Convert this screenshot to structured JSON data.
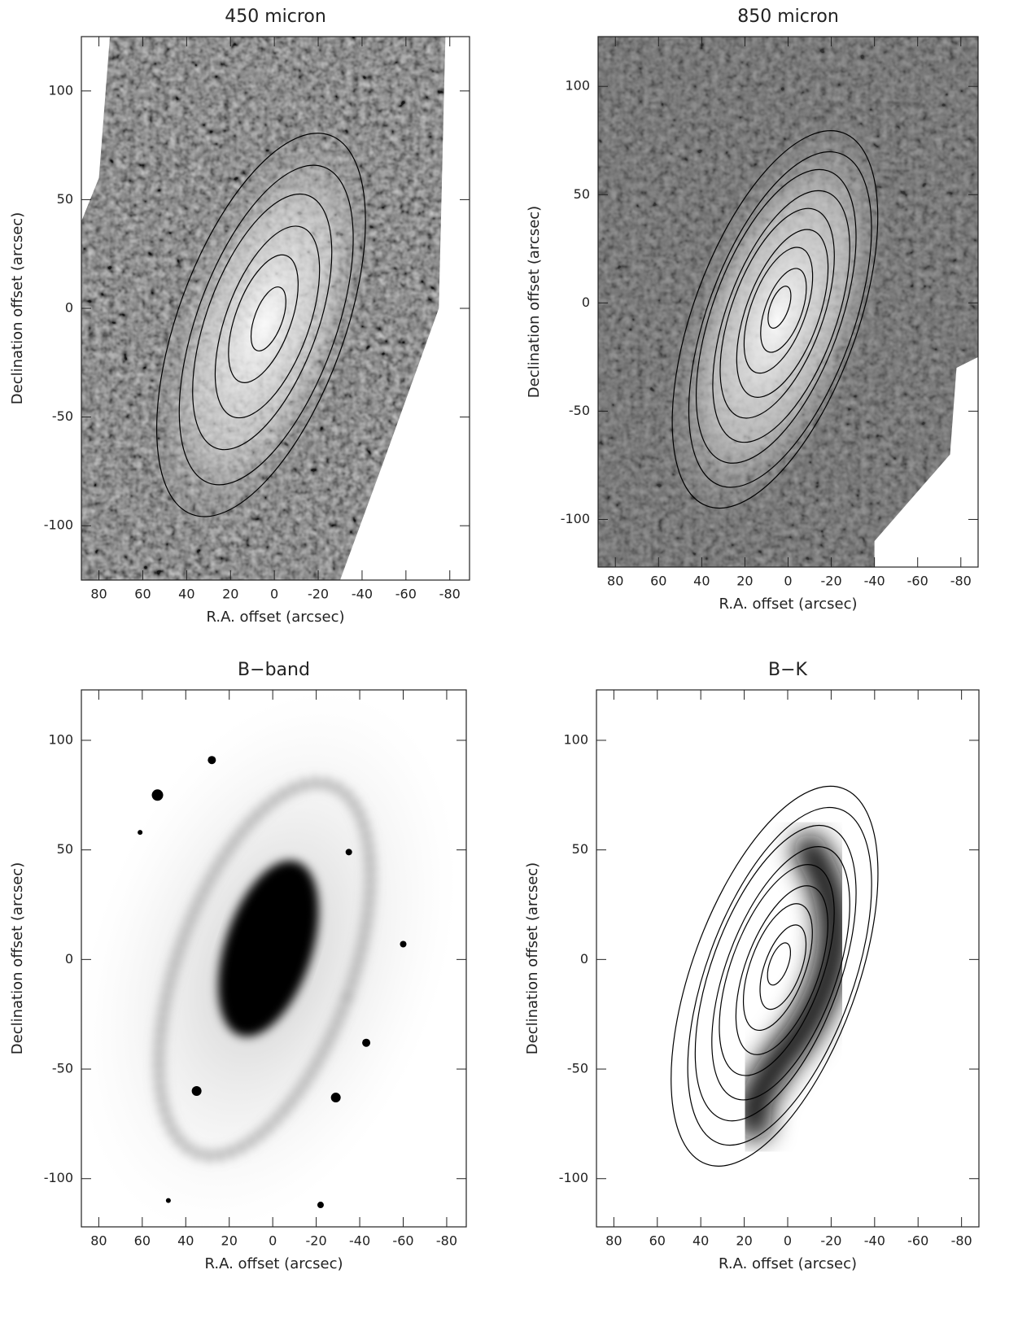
{
  "chart_data": [
    {
      "type": "image",
      "title": "450  micron",
      "xlabel": "R.A.  offset  (arcsec)",
      "ylabel": "Declination  offset  (arcsec)",
      "xlim": [
        88,
        -89
      ],
      "ylim": [
        -125,
        125
      ],
      "xticks": [
        80,
        60,
        40,
        20,
        0,
        -20,
        -40,
        -60,
        -80
      ],
      "yticks": [
        -100,
        -50,
        0,
        50,
        100
      ]
    },
    {
      "type": "image",
      "title": "850  micron",
      "xlabel": "R.A.  offset  (arcsec)",
      "ylabel": "Declination  offset  (arcsec)",
      "xlim": [
        88,
        -88
      ],
      "ylim": [
        -122,
        123
      ],
      "xticks": [
        80,
        60,
        40,
        20,
        0,
        -20,
        -40,
        -60,
        -80
      ],
      "yticks": [
        -100,
        -50,
        0,
        50,
        100
      ]
    },
    {
      "type": "image",
      "title": "B−band",
      "xlabel": "R.A.  offset  (arcsec)",
      "ylabel": "Declination  offset  (arcsec)",
      "xlim": [
        88,
        -89
      ],
      "ylim": [
        -122,
        123
      ],
      "xticks": [
        80,
        60,
        40,
        20,
        0,
        -20,
        -40,
        -60,
        -80
      ],
      "yticks": [
        -100,
        -50,
        0,
        50,
        100
      ]
    },
    {
      "type": "image",
      "title": "B−K",
      "xlabel": "R.A.  offset  (arcsec)",
      "ylabel": "Declination  offset  (arcsec)",
      "xlim": [
        88,
        -88
      ],
      "ylim": [
        -122,
        123
      ],
      "xticks": [
        80,
        60,
        40,
        20,
        0,
        -20,
        -40,
        -60,
        -80
      ],
      "yticks": [
        -100,
        -50,
        0,
        50,
        100
      ]
    }
  ]
}
